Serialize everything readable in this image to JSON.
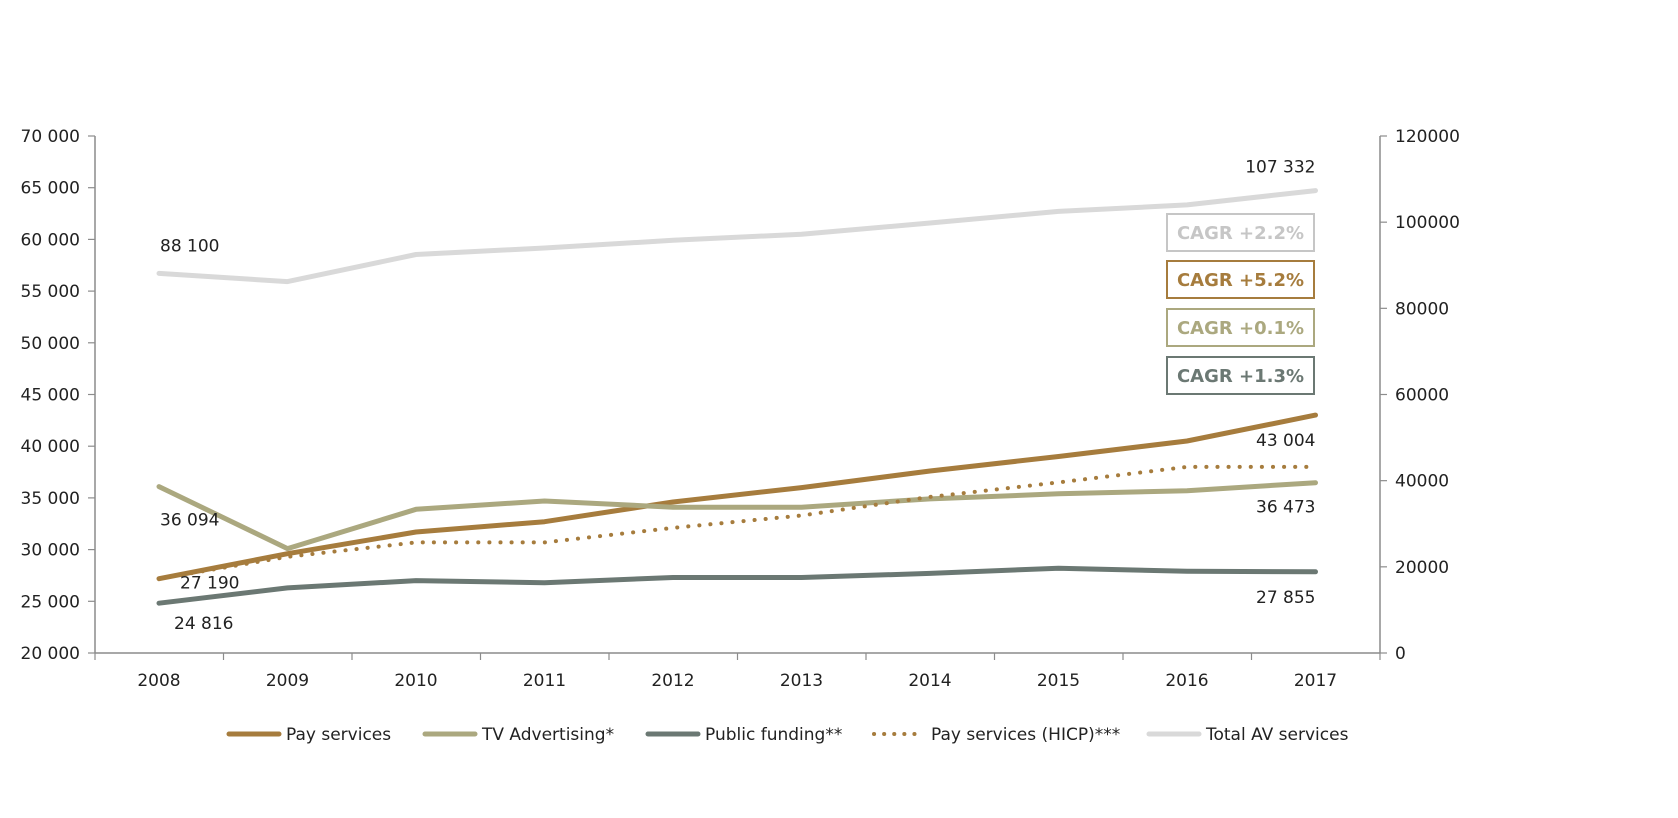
{
  "chart_data": {
    "type": "line",
    "x": [
      "2008",
      "2009",
      "2010",
      "2011",
      "2012",
      "2013",
      "2014",
      "2015",
      "2016",
      "2017"
    ],
    "left_axis": {
      "min": 20000,
      "max": 70000,
      "step": 5000,
      "tick_labels": [
        "20 000",
        "25 000",
        "30 000",
        "35 000",
        "40 000",
        "45 000",
        "50 000",
        "55 000",
        "60 000",
        "65 000",
        "70 000"
      ]
    },
    "right_axis": {
      "min": 0,
      "max": 120000,
      "step": 20000,
      "tick_labels": [
        "0",
        "20000",
        "40000",
        "60000",
        "80000",
        "100000",
        "120000"
      ]
    },
    "series": [
      {
        "name": "Total AV services",
        "axis": "right",
        "style": "solid",
        "color": "#d9d9d9",
        "values": [
          88100,
          86200,
          92500,
          94000,
          95800,
          97200,
          99800,
          102500,
          104000,
          107332
        ]
      },
      {
        "name": "Pay services",
        "axis": "left",
        "style": "solid",
        "color": "#a67c3d",
        "values": [
          27190,
          29600,
          31700,
          32700,
          34600,
          36000,
          37600,
          39000,
          40500,
          43004
        ]
      },
      {
        "name": "TV Advertising*",
        "axis": "left",
        "style": "solid",
        "color": "#aba87f",
        "values": [
          36094,
          30100,
          33900,
          34700,
          34100,
          34100,
          34900,
          35400,
          35700,
          36473
        ]
      },
      {
        "name": "Public funding**",
        "axis": "left",
        "style": "solid",
        "color": "#6b7873",
        "values": [
          24816,
          26300,
          27000,
          26800,
          27300,
          27300,
          27700,
          28200,
          27900,
          27855
        ]
      },
      {
        "name": "Pay services (HICP)***",
        "axis": "left",
        "style": "dotted",
        "color": "#a67c3d",
        "values": [
          27190,
          29300,
          30700,
          30700,
          32100,
          33300,
          35100,
          36500,
          38000,
          38000
        ]
      }
    ],
    "data_labels": [
      {
        "series": "Total AV services",
        "index": 0,
        "text": "88 100"
      },
      {
        "series": "Total AV services",
        "index": 9,
        "text": "107 332"
      },
      {
        "series": "TV Advertising*",
        "index": 0,
        "text": "36 094"
      },
      {
        "series": "Pay services",
        "index": 0,
        "text": "27 190"
      },
      {
        "series": "Public funding**",
        "index": 0,
        "text": "24 816"
      },
      {
        "series": "Pay services",
        "index": 9,
        "text": "43 004"
      },
      {
        "series": "TV Advertising*",
        "index": 9,
        "text": "36 473"
      },
      {
        "series": "Public funding**",
        "index": 9,
        "text": "27 855"
      }
    ],
    "cagr_boxes": [
      {
        "text": "CAGR +2.2%",
        "color": "#c6c6c6"
      },
      {
        "text": "CAGR +5.2%",
        "color": "#a67c3d"
      },
      {
        "text": "CAGR +0.1%",
        "color": "#aba87f"
      },
      {
        "text": "CAGR +1.3%",
        "color": "#6b7873"
      }
    ],
    "legend": [
      {
        "label": "Pay services",
        "color": "#a67c3d",
        "style": "solid"
      },
      {
        "label": "TV Advertising*",
        "color": "#aba87f",
        "style": "solid"
      },
      {
        "label": "Public funding**",
        "color": "#6b7873",
        "style": "solid"
      },
      {
        "label": "Pay services (HICP)***",
        "color": "#a67c3d",
        "style": "dotted"
      },
      {
        "label": "Total AV services",
        "color": "#d9d9d9",
        "style": "solid"
      }
    ]
  }
}
